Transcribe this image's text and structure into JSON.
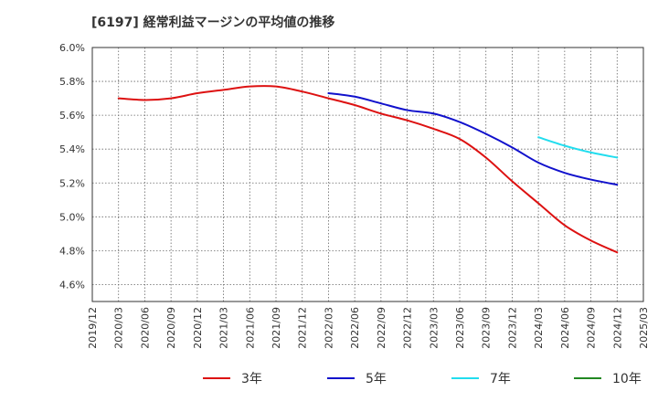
{
  "chart_data": {
    "type": "line",
    "title": "[6197]  経常利益マージンの平均値の推移",
    "xlabel": "",
    "ylabel": "",
    "ylim": [
      4.5,
      6.0
    ],
    "y_ticks": [
      "4.6%",
      "4.8%",
      "5.0%",
      "5.2%",
      "5.4%",
      "5.6%",
      "5.8%",
      "6.0%"
    ],
    "y_tick_values": [
      4.6,
      4.8,
      5.0,
      5.2,
      5.4,
      5.6,
      5.8,
      6.0
    ],
    "categories": [
      "2019/12",
      "2020/03",
      "2020/06",
      "2020/09",
      "2020/12",
      "2021/03",
      "2021/06",
      "2021/09",
      "2021/12",
      "2022/03",
      "2022/06",
      "2022/09",
      "2022/12",
      "2023/03",
      "2023/06",
      "2023/09",
      "2023/12",
      "2024/03",
      "2024/06",
      "2024/09",
      "2024/12",
      "2025/03"
    ],
    "grid": true,
    "legend_position": "bottom",
    "series": [
      {
        "name": "3年",
        "color": "#dd1111",
        "values": [
          null,
          5.7,
          5.69,
          5.7,
          5.73,
          5.75,
          5.77,
          5.77,
          5.74,
          5.7,
          5.66,
          5.61,
          5.57,
          5.52,
          5.46,
          5.35,
          5.21,
          5.08,
          4.95,
          4.86,
          4.79,
          null
        ]
      },
      {
        "name": "5年",
        "color": "#1111cc",
        "values": [
          null,
          null,
          null,
          null,
          null,
          null,
          null,
          null,
          null,
          5.73,
          5.71,
          5.67,
          5.63,
          5.61,
          5.56,
          5.49,
          5.41,
          5.32,
          5.26,
          5.22,
          5.19,
          null
        ]
      },
      {
        "name": "7年",
        "color": "#22ddee",
        "values": [
          null,
          null,
          null,
          null,
          null,
          null,
          null,
          null,
          null,
          null,
          null,
          null,
          null,
          null,
          null,
          null,
          null,
          5.47,
          5.42,
          5.38,
          5.35,
          null
        ]
      },
      {
        "name": "10年",
        "color": "#228822",
        "values": [
          null,
          null,
          null,
          null,
          null,
          null,
          null,
          null,
          null,
          null,
          null,
          null,
          null,
          null,
          null,
          null,
          null,
          null,
          null,
          null,
          null,
          null
        ]
      }
    ]
  }
}
